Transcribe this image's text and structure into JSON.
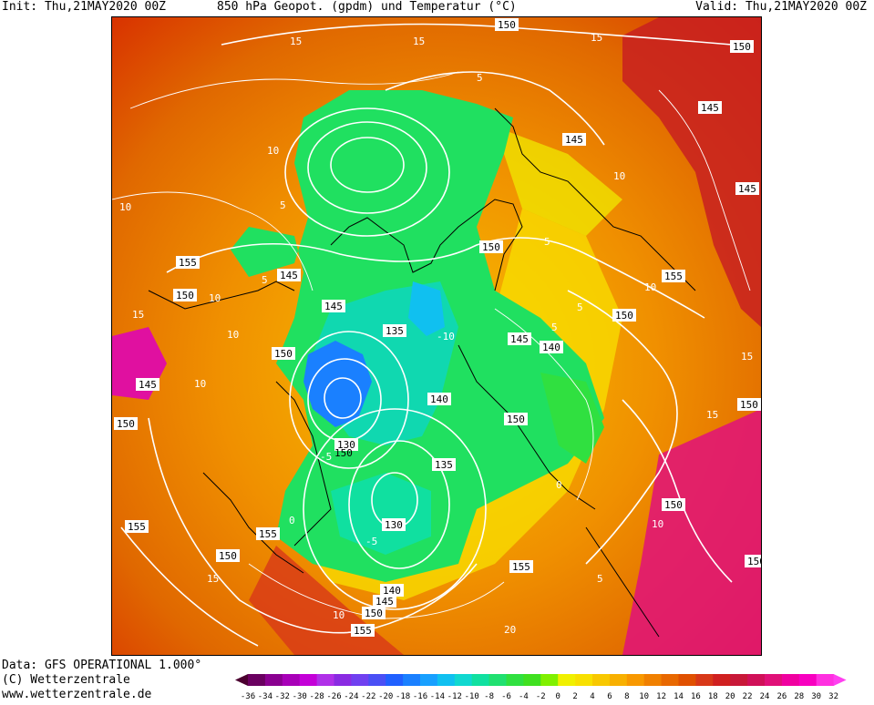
{
  "header": {
    "init": "Init: Thu,21MAY2020 00Z",
    "title": "850 hPa Geopot. (gpdm) und Temperatur (°C)",
    "valid": "Valid: Thu,21MAY2020 00Z"
  },
  "footer": {
    "data_source": "Data: GFS OPERATIONAL 1.000°",
    "copyright": "(C) Wetterzentrale",
    "website": "www.wetterzentrale.de"
  },
  "legend": {
    "ticks": [
      "-36",
      "-34",
      "-32",
      "-30",
      "-28",
      "-26",
      "-24",
      "-22",
      "-20",
      "-18",
      "-16",
      "-14",
      "-12",
      "-10",
      "-8",
      "-6",
      "-4",
      "-2",
      "0",
      "2",
      "4",
      "6",
      "8",
      "10",
      "12",
      "14",
      "16",
      "18",
      "20",
      "22",
      "24",
      "26",
      "28",
      "30",
      "32"
    ],
    "colors": [
      "#4b0030",
      "#6a0060",
      "#8a0090",
      "#a800b8",
      "#c400d8",
      "#b030e8",
      "#8a2be2",
      "#7040f0",
      "#4a4ff5",
      "#2060ff",
      "#1a80ff",
      "#18a0ff",
      "#10c0f0",
      "#10d8d0",
      "#10e0a0",
      "#20e070",
      "#30e040",
      "#40e020",
      "#80f000",
      "#f0f000",
      "#f8e000",
      "#f8c800",
      "#f8b000",
      "#f89800",
      "#f08000",
      "#e86800",
      "#e05000",
      "#d83818",
      "#d02020",
      "#c81838",
      "#d01058",
      "#e01078",
      "#f000a0",
      "#f800c0",
      "#ff30e0"
    ]
  },
  "map": {
    "geopotential_labels": [
      "150",
      "150",
      "155",
      "150",
      "145",
      "145",
      "145",
      "145",
      "150",
      "155",
      "145",
      "135",
      "150",
      "145",
      "140",
      "150",
      "150",
      "145",
      "150",
      "140",
      "130",
      "150",
      "135",
      "155",
      "150",
      "130",
      "150",
      "155",
      "140",
      "145",
      "150",
      "155",
      "155",
      "150",
      "150"
    ],
    "temperature_labels": [
      "15",
      "15",
      "15",
      "10",
      "10",
      "5",
      "5",
      "10",
      "10",
      "5",
      "-10",
      "5",
      "10",
      "5",
      "10",
      "15",
      "10",
      "5",
      "0",
      "-5",
      "10",
      "15",
      "0",
      "-5",
      "10",
      "5",
      "15",
      "20",
      "15"
    ],
    "colors": {
      "land_outline": "#000000",
      "contour": "#ffffff",
      "background_warm": "#e86000",
      "background_cold": "#20e060"
    }
  }
}
